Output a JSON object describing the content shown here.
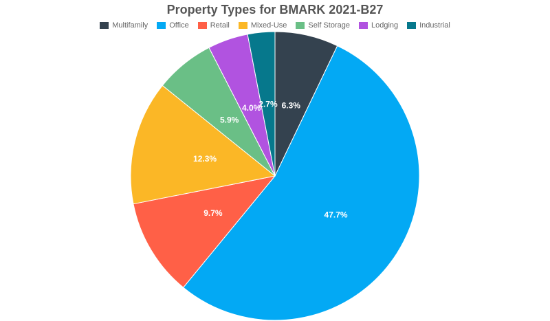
{
  "chart_data": {
    "type": "pie",
    "title": "Property Types for BMARK 2021-B27",
    "legend_position": "top",
    "categories": [
      "Multifamily",
      "Office",
      "Retail",
      "Mixed-Use",
      "Self Storage",
      "Lodging",
      "Industrial"
    ],
    "values": [
      6.3,
      47.7,
      9.7,
      12.3,
      5.9,
      4.0,
      2.7
    ],
    "labels": [
      "6.3%",
      "47.7%",
      "9.7%",
      "12.3%",
      "5.9%",
      "4.0%",
      "2.7%"
    ],
    "colors": [
      "#34424f",
      "#03a9f4",
      "#ff6047",
      "#fbb726",
      "#6abf86",
      "#b153e0",
      "#06788c"
    ]
  }
}
